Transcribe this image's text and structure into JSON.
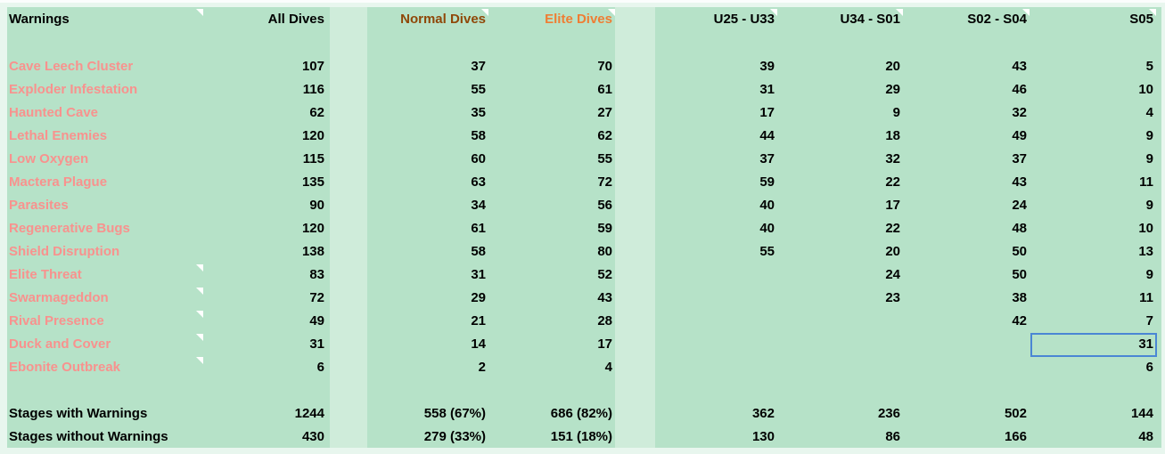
{
  "colors": {
    "page_background": "#e8f6ee",
    "group_band_background": "#b6e2c8",
    "separator_background": "#cfecda",
    "warning_label_text": "#f8928e",
    "normal_dives_text": "#8f4708",
    "elite_dives_text": "#ef7d33",
    "value_text": "#000000",
    "selection_border": "#4a86d4",
    "note_marker": "#ffffff"
  },
  "header": {
    "cells": [
      {
        "label": "Warnings",
        "note": true
      },
      {
        "label": "All Dives",
        "note": false
      },
      {
        "label": "Normal Dives",
        "note": true
      },
      {
        "label": "Elite Dives",
        "note": true
      },
      {
        "label": "U25 - U33",
        "note": true
      },
      {
        "label": "U34 - S01",
        "note": true
      },
      {
        "label": "S02 - S04",
        "note": true
      },
      {
        "label": "S05",
        "note": true
      }
    ]
  },
  "rows": [
    {
      "label": "Cave Leech Cluster",
      "note": false,
      "values": [
        "107",
        "37",
        "70",
        "39",
        "20",
        "43",
        "5"
      ]
    },
    {
      "label": "Exploder Infestation",
      "note": false,
      "values": [
        "116",
        "55",
        "61",
        "31",
        "29",
        "46",
        "10"
      ]
    },
    {
      "label": "Haunted Cave",
      "note": false,
      "values": [
        "62",
        "35",
        "27",
        "17",
        "9",
        "32",
        "4"
      ]
    },
    {
      "label": "Lethal Enemies",
      "note": false,
      "values": [
        "120",
        "58",
        "62",
        "44",
        "18",
        "49",
        "9"
      ]
    },
    {
      "label": "Low Oxygen",
      "note": false,
      "values": [
        "115",
        "60",
        "55",
        "37",
        "32",
        "37",
        "9"
      ]
    },
    {
      "label": "Mactera Plague",
      "note": false,
      "values": [
        "135",
        "63",
        "72",
        "59",
        "22",
        "43",
        "11"
      ]
    },
    {
      "label": "Parasites",
      "note": false,
      "values": [
        "90",
        "34",
        "56",
        "40",
        "17",
        "24",
        "9"
      ]
    },
    {
      "label": "Regenerative Bugs",
      "note": false,
      "values": [
        "120",
        "61",
        "59",
        "40",
        "22",
        "48",
        "10"
      ]
    },
    {
      "label": "Shield Disruption",
      "note": false,
      "values": [
        "138",
        "58",
        "80",
        "55",
        "20",
        "50",
        "13"
      ]
    },
    {
      "label": "Elite Threat",
      "note": true,
      "values": [
        "83",
        "31",
        "52",
        "",
        "24",
        "50",
        "9"
      ]
    },
    {
      "label": "Swarmageddon",
      "note": true,
      "values": [
        "72",
        "29",
        "43",
        "",
        "23",
        "38",
        "11"
      ]
    },
    {
      "label": "Rival Presence",
      "note": true,
      "values": [
        "49",
        "21",
        "28",
        "",
        "",
        "42",
        "7"
      ]
    },
    {
      "label": "Duck and Cover",
      "note": true,
      "values": [
        "31",
        "14",
        "17",
        "",
        "",
        "",
        "31"
      ]
    },
    {
      "label": "Ebonite Outbreak",
      "note": true,
      "values": [
        "6",
        "2",
        "4",
        "",
        "",
        "",
        "6"
      ]
    }
  ],
  "totals": [
    {
      "label": "Stages with Warnings",
      "values": [
        "1244",
        "558 (67%)",
        "686 (82%)",
        "362",
        "236",
        "502",
        "144"
      ]
    },
    {
      "label": "Stages without Warnings",
      "values": [
        "430",
        "279 (33%)",
        "151 (18%)",
        "130",
        "86",
        "166",
        "48"
      ]
    }
  ],
  "selection": {
    "row_label": "Duck and Cover",
    "column": "S05",
    "value": "31"
  }
}
